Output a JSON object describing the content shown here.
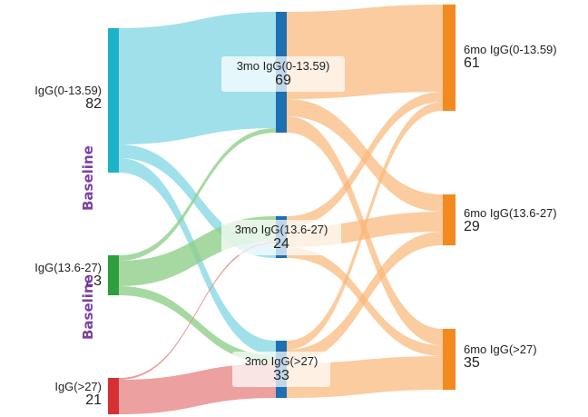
{
  "nodes": {
    "b_low": {
      "name": "IgG(0-13.59)",
      "value": "82",
      "color": "#1cb3c8"
    },
    "b_mid": {
      "name": "IgG(13.6-27)",
      "value": "23",
      "color": "#2e9e3f"
    },
    "b_high": {
      "name": "IgG(>27)",
      "value": "21",
      "color": "#d63035"
    },
    "m3_low": {
      "name": "3mo IgG(0-13.59)",
      "value": "69",
      "color": "#1f6fb3"
    },
    "m3_mid": {
      "name": "3mo IgG(13.6-27)",
      "value": "24",
      "color": "#1f6fb3"
    },
    "m3_high": {
      "name": "3mo IgG(>27)",
      "value": "33",
      "color": "#1f6fb3"
    },
    "m6_low": {
      "name": "6mo IgG(0-13.59)",
      "value": "61",
      "color": "#f28a1f"
    },
    "m6_mid": {
      "name": "6mo IgG(13.6-27)",
      "value": "29",
      "color": "#f28a1f"
    },
    "m6_high": {
      "name": "6mo IgG(>27)",
      "value": "35",
      "color": "#f28a1f"
    }
  },
  "axis_labels": [
    "Baseline",
    "Baseline"
  ],
  "link_colors": {
    "from_low": "#8fdbe8",
    "from_mid": "#8fd08a",
    "from_high": "#ea8f8f",
    "to_6mo": "#f9b676"
  }
}
